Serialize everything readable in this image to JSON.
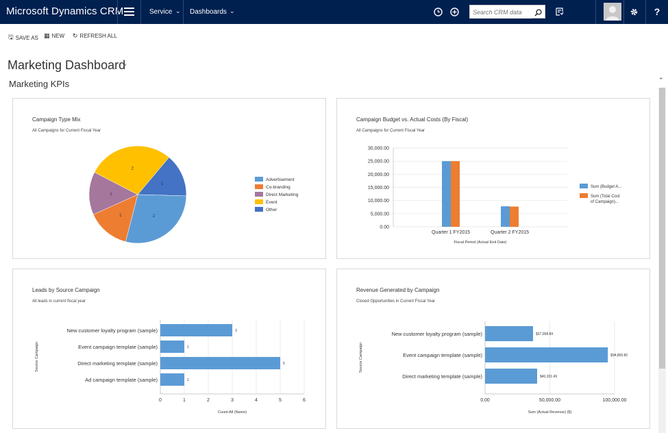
{
  "app": {
    "brand": "Microsoft Dynamics CRM",
    "nav": {
      "area": "Service",
      "page": "Dashboards"
    },
    "search_placeholder": "Search CRM data"
  },
  "commands": {
    "save_as": "SAVE AS",
    "new": "NEW",
    "refresh_all": "REFRESH ALL"
  },
  "dashboard": {
    "title": "Marketing Dashboard",
    "section": "Marketing KPIs"
  },
  "colors": {
    "nav_bg": "#002050",
    "blue": "#5b9bd5",
    "orange": "#ed7d31",
    "purple": "#a5779d",
    "yellow": "#ffc000",
    "dark_blue": "#4472c4"
  },
  "panels": {
    "pie": {
      "title": "Campaign Type Mix",
      "subtitle": "All Campaigns for Current Fiscal Year"
    },
    "budget": {
      "title": "Campaign Budget vs. Actual Costs (By Fiscal)",
      "subtitle": "All Campaigns for Current Fiscal Year"
    },
    "leads": {
      "title": "Leads by Source Campaign",
      "subtitle": "All leads in current fiscal year"
    },
    "revenue": {
      "title": "Revenue Generated by Campaign",
      "subtitle": "Closed Opportunities in Current Fiscal Year"
    }
  },
  "chart_data": [
    {
      "id": "pie",
      "type": "pie",
      "title": "Campaign Type Mix",
      "categories": [
        "Advertisement",
        "Co-branding",
        "Direct Marketing",
        "Event",
        "Other"
      ],
      "values": [
        2,
        1,
        1,
        2,
        1
      ],
      "colors": [
        "#5b9bd5",
        "#ed7d31",
        "#a5779d",
        "#ffc000",
        "#4472c4"
      ],
      "slice_order": [
        4,
        0,
        1,
        2,
        3
      ],
      "legend": "right"
    },
    {
      "id": "budget",
      "type": "bar",
      "title": "Campaign Budget vs. Actual Costs (By Fiscal)",
      "categories": [
        "Quarter 1 FY2015",
        "Quarter 2 FY2015"
      ],
      "series": [
        {
          "name": "Sum (Budget A...",
          "legend_lines": [
            "Sum (Budget A..."
          ],
          "values": [
            25000,
            7800
          ],
          "color": "#5b9bd5"
        },
        {
          "name": "Sum (Total Cost of Campaign)...",
          "legend_lines": [
            "Sum (Total Cost",
            "of Campaign)..."
          ],
          "values": [
            25000,
            7700
          ],
          "color": "#ed7d31"
        }
      ],
      "ylim": [
        0,
        30000
      ],
      "yticks": [
        "0.00",
        "5,000.00",
        "10,000.00",
        "15,000.00",
        "20,000.00",
        "25,000.00",
        "30,000.00"
      ],
      "xlabel": "Fiscal Period (Actual End Date)",
      "ylabel": "",
      "legend": "right"
    },
    {
      "id": "leads",
      "type": "bar",
      "orientation": "horizontal",
      "title": "Leads by Source Campaign",
      "categories": [
        "New customer loyalty program (sample)",
        "Event campaign template (sample)",
        "Direct marketing template (sample)",
        "Ad campaign template (sample)"
      ],
      "values": [
        3,
        1,
        5,
        1
      ],
      "labels": [
        "3",
        "1",
        "5",
        "1"
      ],
      "xlim": [
        0,
        6
      ],
      "xticks": [
        "0",
        "1",
        "2",
        "3",
        "4",
        "5",
        "6"
      ],
      "xlabel": "Count:All (Name)",
      "ylabel": "Source Campaign",
      "color": "#5b9bd5"
    },
    {
      "id": "revenue",
      "type": "bar",
      "orientation": "horizontal",
      "title": "Revenue Generated by Campaign",
      "categories": [
        "New customer loyalty program (sample)",
        "Event campaign template (sample)",
        "Direct marketing template (sample)"
      ],
      "values": [
        37058.84,
        94800.82,
        40201.49
      ],
      "labels": [
        "$37,058.84",
        "$94,800.82",
        "$40,201.49"
      ],
      "xlim": [
        0,
        100000
      ],
      "xticks": [
        "0.00",
        "50,000.00",
        "100,000.00"
      ],
      "xlabel": "Sum (Actual Revenue) ($)",
      "ylabel": "Source Campaign",
      "color": "#5b9bd5"
    }
  ]
}
